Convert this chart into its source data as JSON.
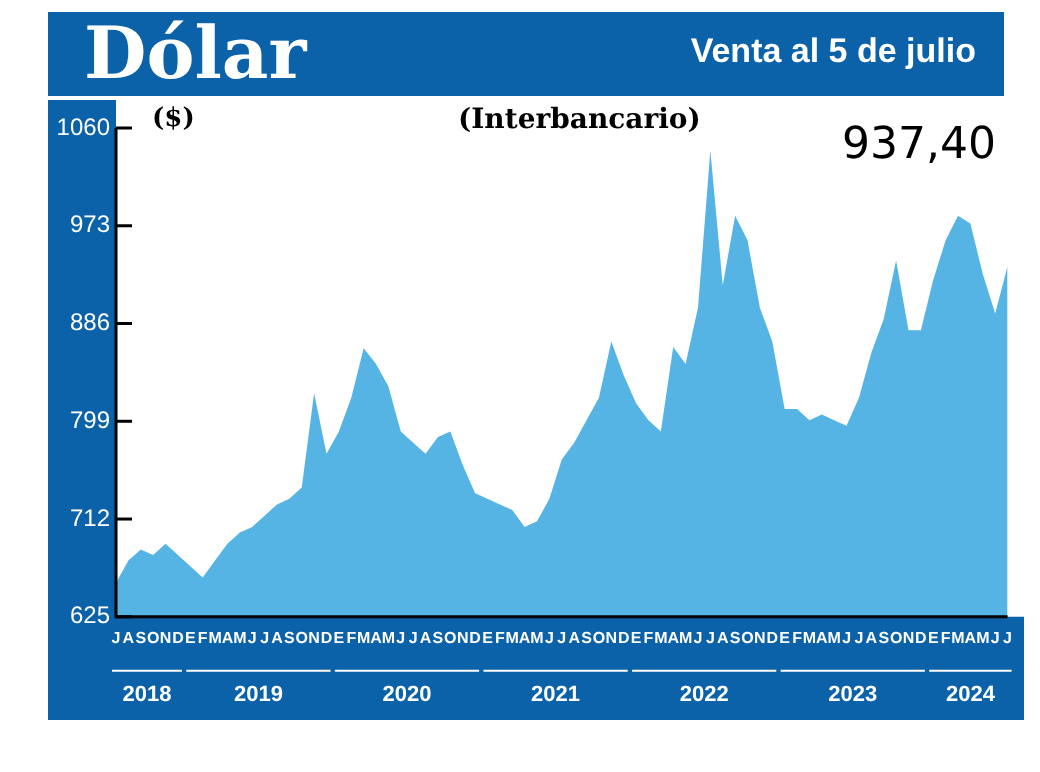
{
  "chart_data": {
    "type": "area",
    "title": "Dólar",
    "subtitle": "Venta al 5 de julio",
    "ylabel": "($)",
    "annotations": [
      "(Interbancario)",
      "937,40",
      "2018",
      "2019",
      "2020",
      "2021",
      "2022",
      "2023",
      "2024"
    ],
    "categories": [
      "J",
      "A",
      "S",
      "O",
      "N",
      "D",
      "E",
      "F",
      "M",
      "A",
      "M",
      "J",
      "J",
      "A",
      "S",
      "O",
      "N",
      "D",
      "E",
      "F",
      "M",
      "A",
      "M",
      "J",
      "J",
      "A",
      "S",
      "O",
      "N",
      "D",
      "E",
      "F",
      "M",
      "A",
      "M",
      "J",
      "J",
      "A",
      "S",
      "O",
      "N",
      "D",
      "E",
      "F",
      "M",
      "A",
      "M",
      "J",
      "J",
      "A",
      "S",
      "O",
      "N",
      "D",
      "E",
      "F",
      "M",
      "A",
      "M",
      "J",
      "J",
      "A",
      "S",
      "O",
      "N",
      "D",
      "E",
      "F",
      "M",
      "A",
      "M",
      "J",
      "J"
    ],
    "series": [
      {
        "color": "#55b4e4",
        "values": [
          655,
          675,
          685,
          680,
          690,
          680,
          670,
          660,
          675,
          690,
          700,
          705,
          715,
          725,
          730,
          740,
          824,
          770,
          790,
          820,
          864,
          850,
          830,
          790,
          780,
          770,
          785,
          790,
          760,
          735,
          730,
          725,
          720,
          705,
          710,
          730,
          765,
          780,
          800,
          820,
          870,
          840,
          815,
          800,
          790,
          865,
          850,
          900,
          1040,
          920,
          982,
          960,
          900,
          870,
          810,
          810,
          800,
          805,
          800,
          795,
          820,
          860,
          890,
          942,
          880,
          880,
          925,
          960,
          982,
          975,
          930,
          895,
          937
        ]
      }
    ],
    "ylim": [
      625,
      1060
    ],
    "yticks": [
      625,
      712,
      799,
      886,
      973,
      1060
    ],
    "legend": false,
    "grid": false
  }
}
